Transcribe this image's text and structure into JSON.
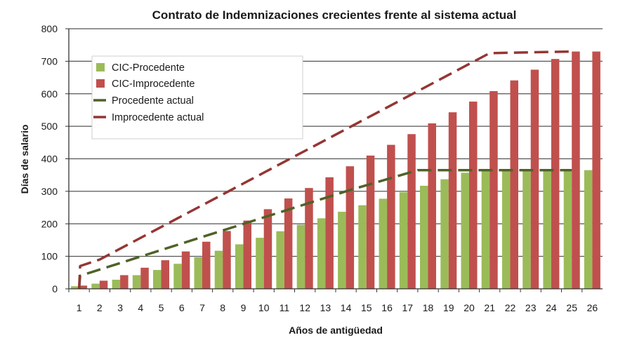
{
  "chart_data": {
    "type": "bar",
    "title": "Contrato de Indemnizaciones crecientes frente al sistema actual",
    "xlabel": "Años de antigüedad",
    "ylabel": "Días de salario",
    "ylim": [
      0,
      800
    ],
    "yticks": [
      "0",
      "100",
      "200",
      "300",
      "400",
      "500",
      "600",
      "700",
      "800"
    ],
    "grid": true,
    "legend_position": "top-left",
    "categories": [
      "1",
      "2",
      "3",
      "4",
      "5",
      "6",
      "7",
      "8",
      "9",
      "10",
      "11",
      "12",
      "13",
      "14",
      "15",
      "16",
      "17",
      "18",
      "19",
      "20",
      "21",
      "22",
      "23",
      "24",
      "25",
      "26"
    ],
    "series": [
      {
        "name": "CIC-Procedente",
        "kind": "bar",
        "color": "#9bbb59",
        "values": [
          8,
          16,
          28,
          42,
          58,
          77,
          97,
          117,
          137,
          157,
          177,
          197,
          217,
          237,
          257,
          277,
          297,
          317,
          337,
          357,
          365,
          365,
          365,
          365,
          365,
          365
        ]
      },
      {
        "name": "CIC-Improcedente",
        "kind": "bar",
        "color": "#c0504d",
        "values": [
          10,
          25,
          42,
          65,
          88,
          115,
          145,
          178,
          210,
          245,
          278,
          310,
          343,
          377,
          410,
          443,
          476,
          509,
          543,
          576,
          608,
          641,
          674,
          707,
          730,
          730
        ]
      },
      {
        "name": "Procedente actual",
        "kind": "dashed-line",
        "color": "#4f6228",
        "x": [
          1,
          1.05,
          14,
          17.5,
          25
        ],
        "values": [
          0,
          40,
          300,
          365,
          365
        ]
      },
      {
        "name": "Improcedente actual",
        "kind": "dashed-line",
        "color": "#943634",
        "x": [
          1,
          1.05,
          2,
          21,
          25
        ],
        "values": [
          0,
          70,
          90,
          725,
          730
        ]
      }
    ]
  }
}
